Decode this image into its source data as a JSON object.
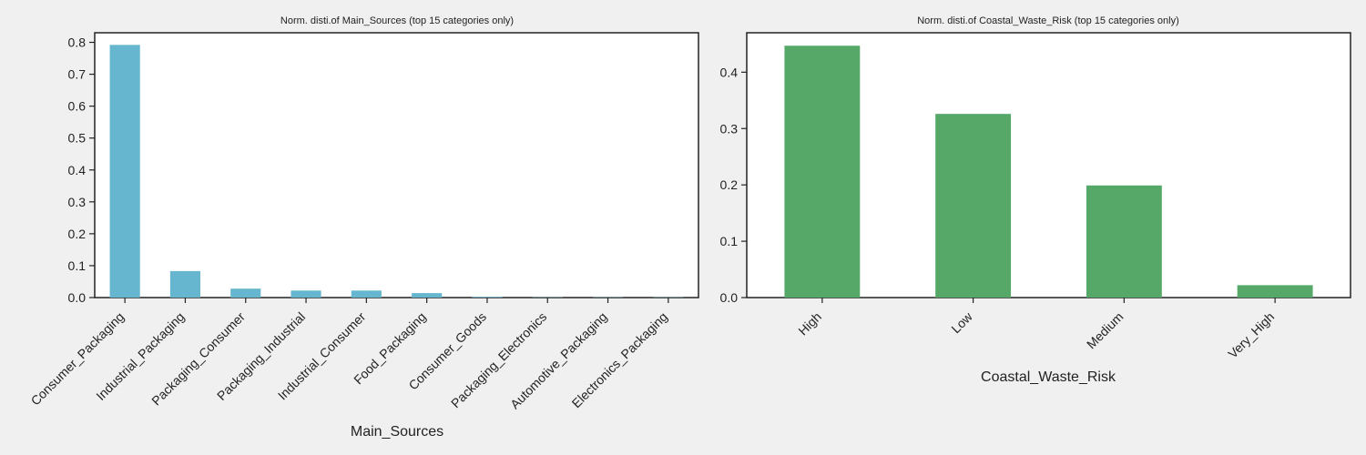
{
  "chart_data": [
    {
      "type": "bar",
      "title": "Norm. disti.of Main_Sources (top 15 categories only)",
      "xlabel": "Main_Sources",
      "ylabel": "",
      "categories": [
        "Consumer_Packaging",
        "Industrial_Packaging",
        "Packaging_Consumer",
        "Packaging_Industrial",
        "Industrial_Consumer",
        "Food_Packaging",
        "Consumer_Goods",
        "Packaging_Electronics",
        "Automotive_Packaging",
        "Electronics_Packaging"
      ],
      "values": [
        0.792,
        0.083,
        0.028,
        0.022,
        0.022,
        0.014,
        0.002,
        0.001,
        0.001,
        0.001
      ],
      "ylim": [
        0,
        0.83
      ],
      "yticks": [
        0.0,
        0.1,
        0.2,
        0.3,
        0.4,
        0.5,
        0.6,
        0.7,
        0.8
      ],
      "ytick_labels": [
        "0.0",
        "0.1",
        "0.2",
        "0.3",
        "0.4",
        "0.5",
        "0.6",
        "0.7",
        "0.8"
      ],
      "color": "#67b6d0",
      "grid": false
    },
    {
      "type": "bar",
      "title": "Norm. disti.of Coastal_Waste_Risk (top 15 categories only)",
      "xlabel": "Coastal_Waste_Risk",
      "ylabel": "",
      "categories": [
        "High",
        "Low",
        "Medium",
        "Very_High"
      ],
      "values": [
        0.447,
        0.326,
        0.199,
        0.022
      ],
      "ylim": [
        0,
        0.47
      ],
      "yticks": [
        0.0,
        0.1,
        0.2,
        0.3,
        0.4
      ],
      "ytick_labels": [
        "0.0",
        "0.1",
        "0.2",
        "0.3",
        "0.4"
      ],
      "color": "#55a868",
      "grid": false
    }
  ]
}
